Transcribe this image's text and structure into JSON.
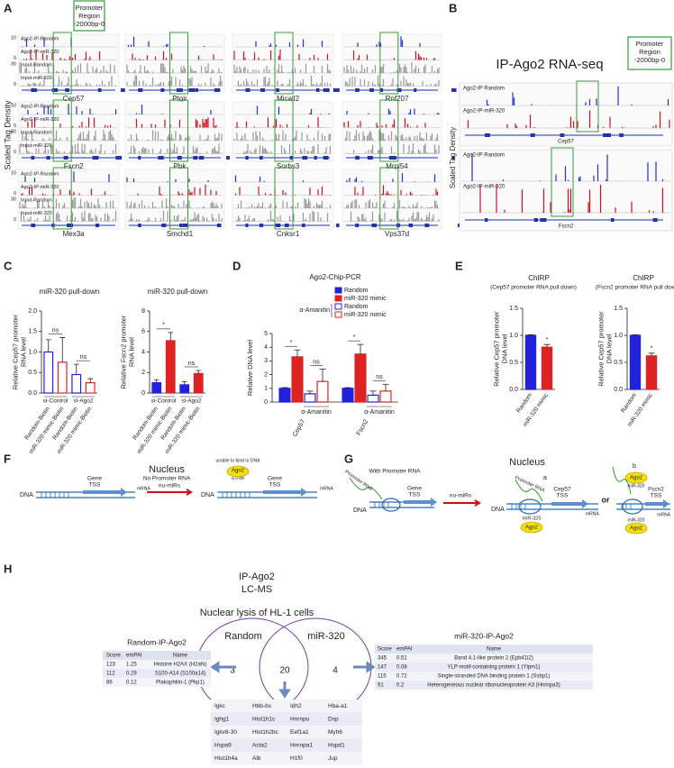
{
  "panel_letters": [
    "A",
    "B",
    "C",
    "D",
    "E",
    "F",
    "G",
    "H"
  ],
  "panel_a": {
    "promoter_box": [
      "Promoter",
      "Region",
      "-2000bp-0"
    ],
    "y_label": "Scaled Tag Density",
    "track_labels": [
      "Ago2-IP-Random",
      "Ago2-IP-miR-320",
      "Input-Random",
      "Input-miR-320"
    ],
    "track_ticks": [
      10,
      0,
      30,
      0
    ],
    "genes": [
      {
        "name": "Cep57",
        "color": "#c00000"
      },
      {
        "name": "Ptgir",
        "color": "#c00000"
      },
      {
        "name": "Micall2",
        "color": "#222222"
      },
      {
        "name": "Rnf207",
        "color": "#222222"
      },
      {
        "name": "Fscn2",
        "color": "#c00000"
      },
      {
        "name": "Pbk",
        "color": "#222222"
      },
      {
        "name": "Sorbs3",
        "color": "#222222"
      },
      {
        "name": "Mrpl54",
        "color": "#222222"
      },
      {
        "name": "Mex3a",
        "color": "#c00000"
      },
      {
        "name": "Smchd1",
        "color": "#222222"
      },
      {
        "name": "Cnksr1",
        "color": "#222222"
      },
      {
        "name": "Vps37d",
        "color": "#222222"
      }
    ]
  },
  "panel_b": {
    "title": "IP-Ago2 RNA-seq",
    "promoter_box": [
      "Promoter",
      "Region",
      "-2000bp-0"
    ],
    "y_label": "Scaled Tag Density",
    "track_labels": [
      "Ago2-IP Random",
      "Ago2-IP-miR-320"
    ],
    "genes": [
      "Cep57",
      "Fscn2"
    ]
  },
  "chart_data": [
    {
      "type": "bar",
      "title": "miR-320 pull-down",
      "y_label": "Relative Cep57 promoter RNA level",
      "categories": [
        "Random-Biotin",
        "miR-320 mimic-Biotin",
        "Random-Biotin",
        "miR-320 mimic-Biotin"
      ],
      "groups": [
        "si-Control",
        "si-Ago2"
      ],
      "values": [
        1.0,
        0.75,
        0.45,
        0.25
      ],
      "errors": [
        0.3,
        0.6,
        0.25,
        0.1
      ],
      "colors": [
        "#2222dd",
        "#dd2222",
        "#2222dd",
        "#dd2222"
      ],
      "filled": false,
      "group_notes": [
        "ns",
        "ns"
      ],
      "ylim": [
        0,
        2
      ],
      "yticks": [
        {
          "value": 0,
          "label": "0.0"
        },
        0.5,
        {
          "value": 1,
          "label": "1.0"
        },
        1.5,
        {
          "value": 2,
          "label": "2.0"
        }
      ]
    },
    {
      "type": "bar",
      "title": "miR-320 pull-down",
      "y_label": "Relative Fscn2 promoter RNA level",
      "categories": [
        "Random-Biotin",
        "miR-320 mimic-Biotin",
        "Random-Biotin",
        "miR-320 mimic-Biotin"
      ],
      "groups": [
        "si-Control",
        "si-Ago2"
      ],
      "values": [
        1.0,
        5.1,
        0.8,
        1.9
      ],
      "errors": [
        0.3,
        0.8,
        0.3,
        0.3
      ],
      "colors": [
        "#2222dd",
        "#dd2222",
        "#2222dd",
        "#dd2222"
      ],
      "filled": true,
      "group_notes": [
        "*",
        "ns"
      ],
      "ylim": [
        0,
        8
      ],
      "yticks": [
        0,
        2,
        4,
        6,
        8
      ]
    },
    {
      "type": "bar",
      "title": "Ago2-Chip-PCR",
      "y_label": "Relative DNA level",
      "categories": [
        "Cep57",
        "Fscn2"
      ],
      "treatment": "α-Amanitin",
      "series": [
        {
          "name": "Random",
          "color": "#2222dd",
          "filled": true,
          "values": [
            1.0,
            1.0
          ],
          "errors": [
            0.05,
            0.05
          ]
        },
        {
          "name": "miR-320 mimic",
          "color": "#dd2222",
          "filled": true,
          "values": [
            3.3,
            3.5
          ],
          "errors": [
            0.5,
            0.7
          ]
        },
        {
          "name": "Random",
          "color": "#2222dd",
          "filled": false,
          "values": [
            0.6,
            0.5
          ],
          "errors": [
            0.2,
            0.3
          ]
        },
        {
          "name": "miR-320 mimic",
          "color": "#dd2222",
          "filled": false,
          "values": [
            1.5,
            0.8
          ],
          "errors": [
            0.9,
            0.5
          ]
        }
      ],
      "pair_notes": [
        [
          "*",
          "ns"
        ],
        [
          "*",
          "ns"
        ]
      ],
      "ylim": [
        0,
        5
      ],
      "yticks": [
        0,
        1,
        2,
        3,
        4,
        5
      ]
    },
    {
      "type": "bar",
      "title": "ChIRP",
      "subtitle": "(Cep57 promoter RNA pull down)",
      "y_label": "Relative Cep57 promoter DNA level",
      "categories": [
        "Random",
        "miR-320 mimic"
      ],
      "values": [
        1.0,
        0.78
      ],
      "errors": [
        0.01,
        0.05
      ],
      "colors": [
        "#2222dd",
        "#dd2222"
      ],
      "filled": true,
      "bar_notes": [
        null,
        "*"
      ],
      "ylim": [
        0,
        1.5
      ],
      "yticks": [
        {
          "value": 0,
          "label": "0.0"
        },
        0.5,
        {
          "value": 1,
          "label": "1.0"
        },
        1.5
      ]
    },
    {
      "type": "bar",
      "title": "ChIRP",
      "subtitle": "(Fscn2 promoter RNA pull down)",
      "y_label": "Relative Cep57 promoter DNA level",
      "categories": [
        "Random",
        "miR-320 mimic"
      ],
      "values": [
        1.0,
        0.62
      ],
      "errors": [
        0.01,
        0.05
      ],
      "colors": [
        "#2222dd",
        "#dd2222"
      ],
      "filled": true,
      "bar_notes": [
        null,
        "*"
      ],
      "ylim": [
        0,
        1.5
      ],
      "yticks": [
        {
          "value": 0,
          "label": "0.0"
        },
        0.5,
        {
          "value": 1,
          "label": "1.0"
        },
        1.5
      ]
    }
  ],
  "panel_f": {
    "title": "Nucleus",
    "subtitle": "No Promoter RNA",
    "dna": "DNA",
    "gene_tss": [
      "Gene",
      "TSS"
    ],
    "arrow": "nu-miRs",
    "ago2": "Ago2",
    "ago2_note": "unable to bind to DNA",
    "mirna": "nu-miR",
    "mrna": "mRNA"
  },
  "panel_g": {
    "title": "Nucleus",
    "subtitle": "With Promoter RNA",
    "promoter_rna": "Promoter RNA",
    "dna": "DNA",
    "gene_tss": [
      "Gene",
      "TSS"
    ],
    "arrow": "nu-miRs",
    "case_a": "a",
    "case_b": "b",
    "cep57_tss": [
      "Cep57",
      "TSS"
    ],
    "fscn2_tss": [
      "Fscn2",
      "TSS"
    ],
    "or": "or",
    "mirna": "miR-320",
    "ago2": "Ago2",
    "mrna": "mRNA"
  },
  "panel_h": {
    "title": [
      "IP-Ago2",
      "LC-MS"
    ],
    "subtitle": "Nuclear lysis of HL-1 cells",
    "venn": {
      "left": "Random",
      "right": "miR-320",
      "left_only": 3,
      "shared": 20,
      "right_only": 4
    },
    "random_table": {
      "title": "Random-IP-Ago2",
      "header": [
        "Score",
        "emPAI",
        "Name"
      ],
      "rows": [
        [
          "123",
          "1.25",
          "Histone H2AX (H2afx)"
        ],
        [
          "112",
          "0.29",
          "S100-A14 (S100a14)"
        ],
        [
          "86",
          "0.12",
          "Plakophilin-1 (Pkp1)"
        ]
      ]
    },
    "mir_table": {
      "title": "miR-320-IP-Ago2",
      "header": [
        "Score",
        "emPAI",
        "Name"
      ],
      "rows": [
        [
          "345",
          "0.51",
          "Band 4.1-like protein 2 (Epb41l2)"
        ],
        [
          "147",
          "0.08",
          "YLP motif-containing protein 1 (Ylpm1)"
        ],
        [
          "115",
          "0.72",
          "Single-stranded DNA binding protein 1 (Ssbp1)"
        ],
        [
          "91",
          "0.2",
          "Heterogeneous nuclear ribonucleoprotein A3 (Hnrnpa3)"
        ]
      ],
      "highlight_color": "#c00000",
      "highlight_rows": [
        1,
        2
      ]
    },
    "shared_table": [
      [
        "Igkc",
        "Hbb-bs",
        "Idh2",
        "Hba-a1"
      ],
      [
        "Ighg1",
        "Hist1h1c",
        "Hnrnpu",
        "Dsp"
      ],
      [
        "Igkv8-30",
        "Hist1h2bc",
        "Eef1a1",
        "Myh6"
      ],
      [
        "Hspa9",
        "Acta2",
        "Hnrnpa1",
        "Hspd1"
      ],
      [
        "Hist1h4a",
        "Alb",
        "H1f0",
        "Jup"
      ]
    ]
  }
}
